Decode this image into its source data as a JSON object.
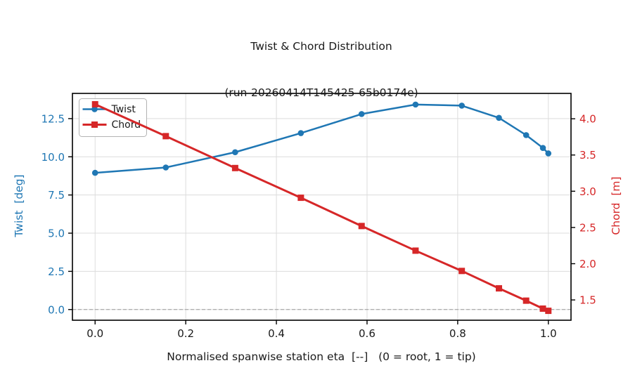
{
  "title": {
    "line1": "Twist & Chord Distribution",
    "line2": "(run-20260414T145425-65b0174e)"
  },
  "chart_data": {
    "type": "line",
    "x": [
      0.0,
      0.156,
      0.309,
      0.454,
      0.588,
      0.707,
      0.809,
      0.891,
      0.951,
      0.988,
      1.0
    ],
    "series": [
      {
        "name": "Twist",
        "axis": "left",
        "color": "#1f77b4",
        "marker": "circle",
        "values": [
          8.95,
          9.3,
          10.3,
          11.55,
          12.8,
          13.42,
          13.35,
          12.55,
          11.42,
          10.58,
          10.22
        ]
      },
      {
        "name": "Chord",
        "axis": "right",
        "color": "#d62728",
        "marker": "square",
        "values": [
          4.2,
          3.76,
          3.32,
          2.91,
          2.52,
          2.18,
          1.9,
          1.66,
          1.49,
          1.38,
          1.35
        ]
      }
    ],
    "xlabel": "Normalised spanwise station eta  [--]   (0 = root, 1 = tip)",
    "ylabel_left": "Twist  [deg]",
    "ylabel_right": "Chord  [m]",
    "xlim": [
      -0.05,
      1.05
    ],
    "ylim_left": [
      -0.7,
      14.15
    ],
    "ylim_right": [
      1.22,
      4.35
    ],
    "xticks": [
      "0.0",
      "0.2",
      "0.4",
      "0.6",
      "0.8",
      "1.0"
    ],
    "yticks_left": [
      "0.0",
      "2.5",
      "5.0",
      "7.5",
      "10.0",
      "12.5"
    ],
    "yticks_right": [
      "1.5",
      "2.0",
      "2.5",
      "3.0",
      "3.5",
      "4.0"
    ],
    "grid": true,
    "zero_line": 0,
    "legend_position": "upper left",
    "colors": {
      "twist": "#1f77b4",
      "chord": "#d62728",
      "grid": "#dcdcdc",
      "spine": "#000000",
      "zero_line": "#999999",
      "legend_border": "#b3b3b3"
    }
  },
  "legend": {
    "items": [
      {
        "label": "Twist"
      },
      {
        "label": "Chord"
      }
    ]
  }
}
